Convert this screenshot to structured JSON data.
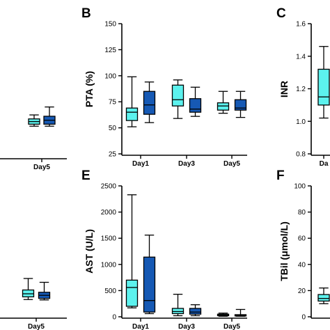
{
  "colors": {
    "light": "#5CF2EE",
    "dark": "#1659B4",
    "stroke": "#000000"
  },
  "chart_data": [
    {
      "panel": "A",
      "type": "box",
      "letter": "",
      "categories": [
        "Day5"
      ],
      "xlabel": "",
      "ylabel": "",
      "boxes": [
        {
          "cat": 0,
          "series": "light",
          "whislo": 72,
          "q1": 75,
          "med": 79,
          "q3": 83,
          "whishi": 89
        },
        {
          "cat": 0,
          "series": "dark",
          "whislo": 72,
          "q1": 75,
          "med": 81,
          "q3": 87,
          "whishi": 101
        }
      ]
    },
    {
      "panel": "B",
      "type": "box",
      "letter": "B",
      "categories": [
        "Day1",
        "Day3",
        "Day5"
      ],
      "xlabel": "",
      "ylabel": "PTA (%)",
      "ylim": [
        25,
        150
      ],
      "yticks": [
        25,
        50,
        75,
        100,
        125,
        150
      ],
      "boxes": [
        {
          "cat": 0,
          "series": "light",
          "whislo": 51,
          "q1": 57,
          "med": 65,
          "q3": 69,
          "whishi": 99
        },
        {
          "cat": 0,
          "series": "dark",
          "whislo": 55,
          "q1": 63,
          "med": 72,
          "q3": 85,
          "whishi": 94
        },
        {
          "cat": 1,
          "series": "light",
          "whislo": 59,
          "q1": 71,
          "med": 77,
          "q3": 91,
          "whishi": 96
        },
        {
          "cat": 1,
          "series": "dark",
          "whislo": 61,
          "q1": 65,
          "med": 68,
          "q3": 78,
          "whishi": 89
        },
        {
          "cat": 2,
          "series": "light",
          "whislo": 64,
          "q1": 67,
          "med": 71,
          "q3": 74,
          "whishi": 85
        },
        {
          "cat": 2,
          "series": "dark",
          "whislo": 60,
          "q1": 67,
          "med": 69,
          "q3": 77,
          "whishi": 85
        }
      ]
    },
    {
      "panel": "C",
      "type": "box",
      "letter": "C",
      "categories": [
        "Da"
      ],
      "xlabel": "",
      "ylabel": "INR",
      "ylim": [
        0.8,
        1.6
      ],
      "yticks": [
        "0.8",
        "1.0",
        "1.2",
        "1.4",
        "1.6"
      ],
      "boxes": [
        {
          "cat": 0,
          "series": "light",
          "whislo": 1.02,
          "q1": 1.1,
          "med": 1.15,
          "q3": 1.32,
          "whishi": 1.46
        }
      ]
    },
    {
      "panel": "D",
      "type": "box",
      "letter": "",
      "categories": [
        "Day5"
      ],
      "xlabel": "",
      "ylabel": "",
      "boxes": [
        {
          "cat": 0,
          "series": "light",
          "whislo": 45,
          "q1": 52,
          "med": 60,
          "q3": 70,
          "whishi": 100
        },
        {
          "cat": 0,
          "series": "dark",
          "whislo": 44,
          "q1": 48,
          "med": 56,
          "q3": 64,
          "whishi": 90
        }
      ]
    },
    {
      "panel": "E",
      "type": "box",
      "letter": "E",
      "categories": [
        "Day1",
        "Day3",
        "Day5"
      ],
      "xlabel": "",
      "ylabel": "AST (U/L)",
      "ylim": [
        0,
        2500
      ],
      "yticks": [
        0,
        500,
        1000,
        1500,
        2000,
        2500
      ],
      "boxes": [
        {
          "cat": 0,
          "series": "light",
          "whislo": 170,
          "q1": 200,
          "med": 560,
          "q3": 700,
          "whishi": 2330
        },
        {
          "cat": 0,
          "series": "dark",
          "whislo": 60,
          "q1": 90,
          "med": 310,
          "q3": 1140,
          "whishi": 1560
        },
        {
          "cat": 1,
          "series": "light",
          "whislo": 20,
          "q1": 60,
          "med": 100,
          "q3": 160,
          "whishi": 430
        },
        {
          "cat": 1,
          "series": "dark",
          "whislo": 20,
          "q1": 50,
          "med": 90,
          "q3": 160,
          "whishi": 230
        },
        {
          "cat": 2,
          "series": "light",
          "whislo": 10,
          "q1": 20,
          "med": 35,
          "q3": 50,
          "whishi": 70
        },
        {
          "cat": 2,
          "series": "dark",
          "whislo": 10,
          "q1": 15,
          "med": 25,
          "q3": 40,
          "whishi": 140
        }
      ]
    },
    {
      "panel": "F",
      "type": "box",
      "letter": "F",
      "categories": [],
      "xlabel": "",
      "ylabel": "TBil (μmol/L)",
      "ylim": [
        0,
        100
      ],
      "yticks": [
        0,
        20,
        40,
        60,
        80,
        100
      ],
      "boxes": [
        {
          "cat": 0,
          "series": "light",
          "whislo": 10,
          "q1": 12,
          "med": 14,
          "q3": 17,
          "whishi": 22
        }
      ]
    }
  ]
}
